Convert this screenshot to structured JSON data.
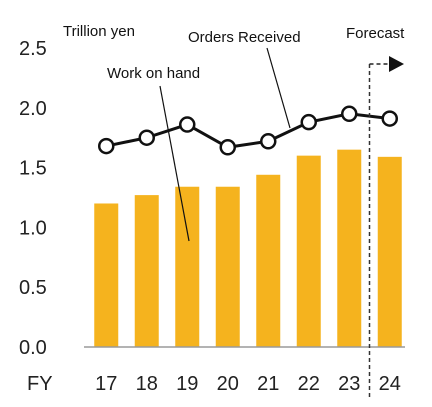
{
  "chart_data": {
    "type": "bar",
    "unit_label": "Trillion yen",
    "x_prefix": "FY",
    "categories": [
      "17",
      "18",
      "19",
      "20",
      "21",
      "22",
      "23",
      "24"
    ],
    "ylim": [
      0.0,
      2.5
    ],
    "yticks": [
      "0.0",
      "0.5",
      "1.0",
      "1.5",
      "2.0",
      "2.5"
    ],
    "grid": false,
    "series": [
      {
        "name": "Work on hand",
        "type": "bar",
        "color": "#F5B31E",
        "values": [
          1.2,
          1.27,
          1.34,
          1.34,
          1.44,
          1.6,
          1.65,
          1.59
        ]
      },
      {
        "name": "Orders Received",
        "type": "line",
        "color": "#111111",
        "marker": "open-circle",
        "values": [
          1.68,
          1.75,
          1.86,
          1.67,
          1.72,
          1.88,
          1.95,
          1.91
        ]
      }
    ],
    "forecast_label": "Forecast",
    "forecast_from": "24"
  }
}
